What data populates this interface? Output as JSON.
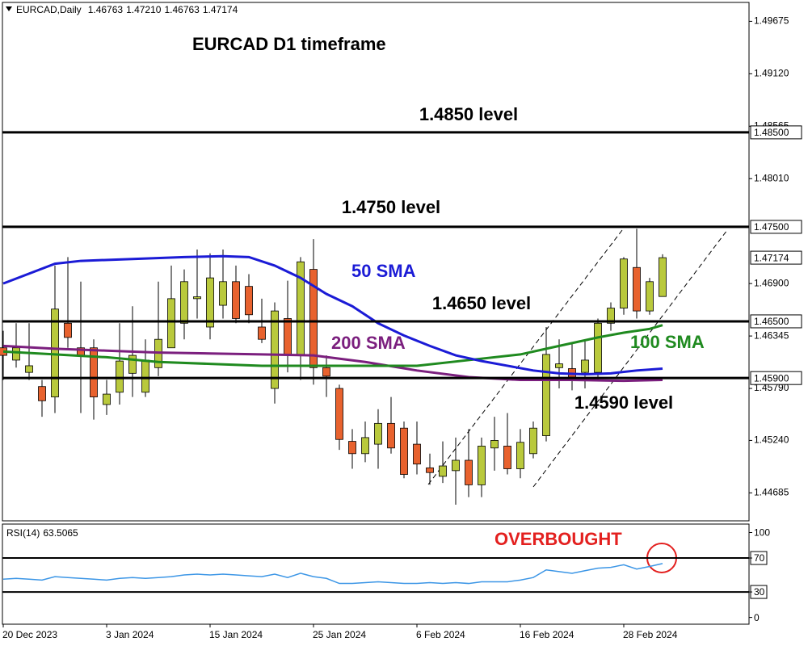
{
  "chart_data": {
    "type": "candlestick",
    "title": "EURCAD D1 timeframe",
    "header": {
      "symbol": "EURCAD,Daily",
      "ohlc": [
        "1.46763",
        "1.47210",
        "1.46763",
        "1.47174"
      ]
    },
    "categories": [
      "20 Dec 2023",
      null,
      null,
      null,
      null,
      null,
      null,
      null,
      "3 Jan 2024",
      null,
      null,
      null,
      null,
      null,
      null,
      null,
      "15 Jan 2024",
      null,
      null,
      null,
      null,
      null,
      null,
      null,
      "25 Jan 2024",
      null,
      null,
      null,
      null,
      null,
      null,
      null,
      "6 Feb 2024",
      null,
      null,
      null,
      null,
      null,
      null,
      null,
      "16 Feb 2024",
      null,
      null,
      null,
      null,
      null,
      null,
      null,
      "28 Feb 2024",
      null,
      null,
      null
    ],
    "open": [
      1.4622,
      1.4609,
      1.4596,
      1.4581,
      1.457,
      1.4648,
      1.4622,
      1.4622,
      1.4562,
      1.4575,
      1.4595,
      1.4575,
      1.4601,
      1.4622,
      1.4648,
      1.4674,
      1.4644,
      1.4667,
      1.4692,
      1.4687,
      1.4644,
      1.4579,
      1.4653,
      1.4614,
      1.4705,
      1.4601,
      1.4579,
      1.4523,
      1.451,
      1.452,
      1.4542,
      1.4537,
      1.452,
      1.4495,
      1.4486,
      1.4492,
      1.4503,
      1.4477,
      1.4516,
      1.4518,
      1.4494,
      1.451,
      1.4529,
      1.4601,
      1.46,
      1.4596,
      1.4596,
      1.4648,
      1.4664,
      1.4707,
      1.4661,
      1.46763
    ],
    "high": [
      1.464,
      1.4648,
      1.4648,
      1.4588,
      1.4709,
      1.4718,
      1.4692,
      1.4631,
      1.4588,
      1.4648,
      1.4666,
      1.4631,
      1.4692,
      1.4709,
      1.4705,
      1.4726,
      1.4722,
      1.4726,
      1.4709,
      1.47,
      1.4674,
      1.467,
      1.4693,
      1.4718,
      1.4737,
      1.4614,
      1.4583,
      1.4536,
      1.4544,
      1.4557,
      1.457,
      1.4544,
      1.4544,
      1.451,
      1.4523,
      1.4527,
      1.4536,
      1.4527,
      1.4549,
      1.4553,
      1.4536,
      1.4544,
      1.4644,
      1.4631,
      1.4627,
      1.4631,
      1.4653,
      1.467,
      1.4718,
      1.4748,
      1.4696,
      1.4721
    ],
    "low": [
      1.4588,
      1.4601,
      1.4588,
      1.4549,
      1.4553,
      1.4622,
      1.4553,
      1.4546,
      1.4551,
      1.4562,
      1.457,
      1.457,
      1.4592,
      1.4622,
      1.4631,
      1.4653,
      1.4631,
      1.4653,
      1.4648,
      1.4648,
      1.4627,
      1.4563,
      1.4596,
      1.4588,
      1.4583,
      1.457,
      1.4514,
      1.4494,
      1.4501,
      1.4494,
      1.451,
      1.4484,
      1.4488,
      1.4477,
      1.4479,
      1.4456,
      1.4464,
      1.4464,
      1.4492,
      1.4488,
      1.4484,
      1.4505,
      1.4523,
      1.4579,
      1.4577,
      1.4579,
      1.4588,
      1.464,
      1.4657,
      1.4653,
      1.4657,
      1.46763
    ],
    "close": [
      1.4614,
      1.4622,
      1.4603,
      1.4566,
      1.4663,
      1.4633,
      1.4614,
      1.457,
      1.4573,
      1.4608,
      1.4614,
      1.4609,
      1.4631,
      1.4674,
      1.4692,
      1.4676,
      1.4696,
      1.4692,
      1.4653,
      1.4657,
      1.4631,
      1.4661,
      1.4614,
      1.4713,
      1.4601,
      1.4592,
      1.4525,
      1.451,
      1.4527,
      1.4542,
      1.4516,
      1.4488,
      1.4499,
      1.449,
      1.4497,
      1.4503,
      1.4477,
      1.4518,
      1.4524,
      1.4494,
      1.4522,
      1.4537,
      1.4615,
      1.4605,
      1.4591,
      1.4609,
      1.4648,
      1.4664,
      1.4716,
      1.4661,
      1.4692,
      1.47174
    ],
    "up_color": "#b9c93c",
    "down_color": "#e8622e",
    "ylim": [
      1.44389,
      1.49875
    ],
    "yticks": [
      1.49675,
      {
        "value": 1.4912,
        "label": "1.49120"
      },
      1.48565,
      {
        "value": 1.4801,
        "label": "1.48010"
      },
      {
        "value": 1.469,
        "label": "1.46900"
      },
      1.46345,
      {
        "value": 1.4579,
        "label": "1.45790"
      },
      {
        "value": 1.4524,
        "label": "1.45240"
      },
      1.44685
    ],
    "levels": [
      {
        "value": 1.485,
        "label": "1.48500",
        "text": "1.4850 level"
      },
      {
        "value": 1.475,
        "label": "1.47500",
        "text": "1.4750 level"
      },
      {
        "value": 1.465,
        "label": "1.46500",
        "text": "1.4650 level"
      },
      {
        "value": 1.459,
        "label": "1.45900",
        "text": "1.4590 level"
      }
    ],
    "last_price": 1.47174,
    "overlays": [
      {
        "name": "200 SMA",
        "color": "#7b1f7e",
        "x": [
          0,
          4,
          8,
          12,
          16,
          20,
          24,
          28,
          32,
          36,
          40,
          44,
          48,
          51
        ],
        "values": [
          1.4624,
          1.4621,
          1.4619,
          1.4617,
          1.4616,
          1.4615,
          1.4614,
          1.4607,
          1.4598,
          1.4591,
          1.4588,
          1.4588,
          1.4587,
          1.4588
        ]
      },
      {
        "name": "100 SMA",
        "color": "#1f8a1f",
        "x": [
          0,
          4,
          8,
          12,
          16,
          20,
          24,
          28,
          32,
          36,
          40,
          42,
          44,
          46,
          48,
          50,
          51
        ],
        "values": [
          1.4618,
          1.4615,
          1.4612,
          1.4607,
          1.4605,
          1.4603,
          1.4603,
          1.4603,
          1.4603,
          1.4609,
          1.4615,
          1.4621,
          1.4627,
          1.4633,
          1.4638,
          1.4642,
          1.4646
        ]
      },
      {
        "name": "50 SMA",
        "color": "#1b1bd6",
        "x": [
          0,
          4,
          6,
          10,
          14,
          17,
          19,
          21,
          23,
          25,
          27,
          29,
          31,
          33,
          35,
          37,
          39,
          41,
          43,
          45,
          47,
          49,
          51
        ],
        "values": [
          1.469,
          1.4711,
          1.4714,
          1.4716,
          1.4718,
          1.4719,
          1.4718,
          1.4709,
          1.4696,
          1.4679,
          1.4666,
          1.4648,
          1.4635,
          1.4624,
          1.4614,
          1.4608,
          1.4603,
          1.4598,
          1.4595,
          1.4594,
          1.4595,
          1.4598,
          1.46
        ]
      }
    ],
    "rsi": {
      "label": "RSI(14)",
      "value": 63.5065,
      "color": "#3c96e6",
      "values": [
        45,
        46,
        45,
        44,
        48,
        47,
        46,
        45,
        44,
        46,
        47,
        46,
        47,
        48,
        50,
        51,
        50,
        51,
        50,
        49,
        48,
        51,
        47,
        52,
        48,
        46,
        40,
        40,
        41,
        42,
        41,
        40,
        40,
        41,
        40,
        41,
        40,
        42,
        42,
        42,
        44,
        47,
        56,
        54,
        52,
        55,
        58,
        59,
        62,
        57,
        60,
        63.5065
      ],
      "ylim": [
        -8,
        110
      ],
      "yticks": [
        100,
        70,
        30,
        0
      ],
      "levels": [
        70,
        30
      ],
      "annotation": "OVERBOUGHT",
      "annotation_color": "#e3201f"
    }
  }
}
